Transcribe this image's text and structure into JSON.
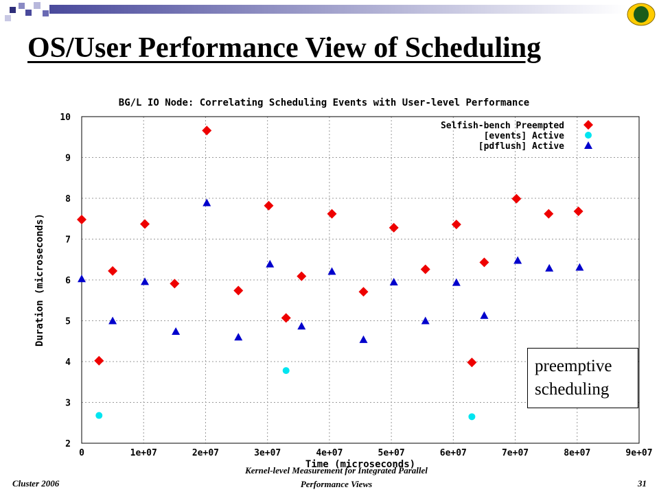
{
  "slide": {
    "title": "OS/User Performance View of Scheduling",
    "callout": [
      "preemptive",
      "scheduling"
    ],
    "footer": {
      "left": "Cluster 2006",
      "center_line1": "Kernel-level Measurement for Integrated Parallel",
      "center_line2": "Performance Views",
      "page": "31"
    }
  },
  "colors": {
    "series_preempted": "#ee0000",
    "series_events": "#00e5f0",
    "series_pdflush": "#0000cc",
    "decoration_bar": "#4a4a9c",
    "logo_outer": "#ffcc00",
    "logo_inner": "#1a5c1a"
  },
  "chart_data": {
    "type": "scatter",
    "title": "BG/L IO Node: Correlating Scheduling Events with User-level Performance",
    "xlabel": "Time (microseconds)",
    "ylabel": "Duration (microseconds)",
    "xlim": [
      0,
      90000000
    ],
    "ylim": [
      2,
      10
    ],
    "x_ticks": [
      0,
      10000000,
      20000000,
      30000000,
      40000000,
      50000000,
      60000000,
      70000000,
      80000000,
      90000000
    ],
    "x_tick_labels": [
      "0",
      "1e+07",
      "2e+07",
      "3e+07",
      "4e+07",
      "5e+07",
      "6e+07",
      "7e+07",
      "8e+07",
      "9e+07"
    ],
    "y_ticks": [
      2,
      3,
      4,
      5,
      6,
      7,
      8,
      9,
      10
    ],
    "y_tick_labels": [
      "2",
      "3",
      "4",
      "5",
      "6",
      "7",
      "8",
      "9",
      "10"
    ],
    "grid": true,
    "legend_position": "top-right",
    "series": [
      {
        "name": "Selfish-bench Preempted",
        "marker": "diamond",
        "points": [
          [
            0,
            7.48
          ],
          [
            2800000,
            4.02
          ],
          [
            5000000,
            6.22
          ],
          [
            10200000,
            7.37
          ],
          [
            15000000,
            5.91
          ],
          [
            20200000,
            9.66
          ],
          [
            25300000,
            5.74
          ],
          [
            30200000,
            7.82
          ],
          [
            33000000,
            5.07
          ],
          [
            35500000,
            6.09
          ],
          [
            40400000,
            7.62
          ],
          [
            45500000,
            5.71
          ],
          [
            50400000,
            7.28
          ],
          [
            55500000,
            6.26
          ],
          [
            60500000,
            7.36
          ],
          [
            63000000,
            3.98
          ],
          [
            65000000,
            6.43
          ],
          [
            70200000,
            7.99
          ],
          [
            75400000,
            7.62
          ],
          [
            80200000,
            7.68
          ]
        ]
      },
      {
        "name": "[events] Active",
        "marker": "circle",
        "points": [
          [
            2800000,
            2.68
          ],
          [
            33000000,
            3.78
          ],
          [
            63000000,
            2.65
          ]
        ]
      },
      {
        "name": "[pdflush] Active",
        "marker": "triangle",
        "points": [
          [
            0,
            6.03
          ],
          [
            5000000,
            5.0
          ],
          [
            10200000,
            5.96
          ],
          [
            15200000,
            4.74
          ],
          [
            20200000,
            7.89
          ],
          [
            25300000,
            4.6
          ],
          [
            30400000,
            6.39
          ],
          [
            35500000,
            4.87
          ],
          [
            40400000,
            6.21
          ],
          [
            45500000,
            4.54
          ],
          [
            50400000,
            5.95
          ],
          [
            55500000,
            5.0
          ],
          [
            60500000,
            5.94
          ],
          [
            65000000,
            5.13
          ],
          [
            70400000,
            6.48
          ],
          [
            75500000,
            6.29
          ],
          [
            80400000,
            6.31
          ]
        ]
      }
    ]
  }
}
